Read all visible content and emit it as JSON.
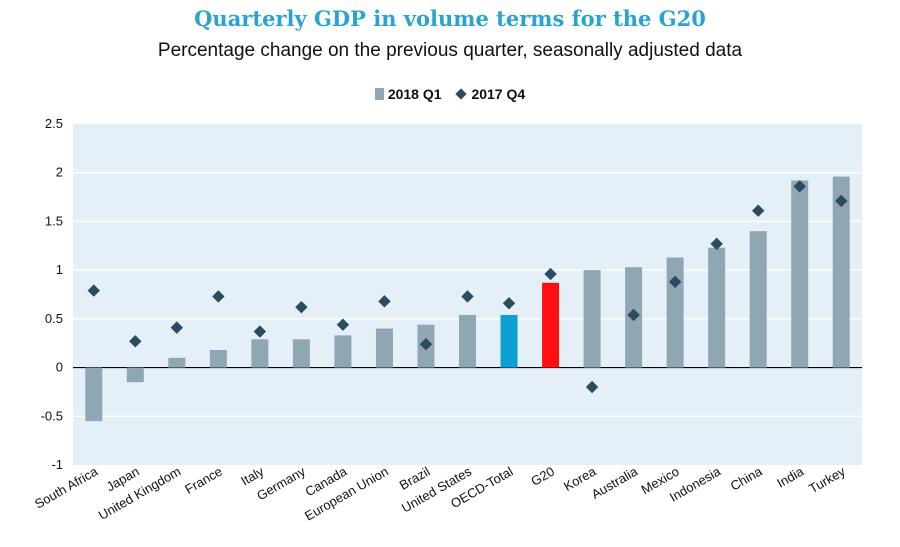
{
  "chart_data": {
    "type": "bar",
    "title": "Quarterly GDP in volume terms for the G20",
    "subtitle": "Percentage change on the previous quarter, seasonally adjusted data",
    "xlabel": "",
    "ylabel": "",
    "ylim": [
      -1,
      2.5
    ],
    "yticks": [
      "2.5",
      "2",
      "1.5",
      "1",
      "0.5",
      "0",
      "-0.5",
      "-1"
    ],
    "ytick_values": [
      2.5,
      2,
      1.5,
      1,
      0.5,
      0,
      -0.5,
      -1
    ],
    "legend_position": "top-center",
    "categories": [
      "South Africa",
      "Japan",
      "United Kingdom",
      "France",
      "Italy",
      "Germany",
      "Canada",
      "European Union",
      "Brazil",
      "United States",
      "OECD-Total",
      "G20",
      "Korea",
      "Australia",
      "Mexico",
      "Indonesia",
      "China",
      "India",
      "Turkey"
    ],
    "series": [
      {
        "name": "2018 Q1",
        "kind": "bar",
        "values": [
          -0.55,
          -0.15,
          0.1,
          0.18,
          0.29,
          0.29,
          0.33,
          0.4,
          0.44,
          0.54,
          0.54,
          0.87,
          1.0,
          1.03,
          1.13,
          1.23,
          1.4,
          1.92,
          1.96
        ]
      },
      {
        "name": "2017 Q4",
        "kind": "marker",
        "values": [
          0.79,
          0.27,
          0.41,
          0.73,
          0.37,
          0.62,
          0.44,
          0.68,
          0.24,
          0.73,
          0.66,
          0.96,
          -0.2,
          0.54,
          0.88,
          1.27,
          1.61,
          1.86,
          1.71
        ]
      }
    ],
    "colors": {
      "bar": "#8fa6b3",
      "marker": "#2c4b5e",
      "plot_bg": "#e5eff7",
      "gridline": "#ffffff",
      "highlight_oecd": "#0c9fd4",
      "highlight_g20": "#ff1010",
      "title": "#2aa3cf"
    },
    "highlights": {
      "OECD-Total": "#0c9fd4",
      "G20": "#ff1010"
    }
  }
}
